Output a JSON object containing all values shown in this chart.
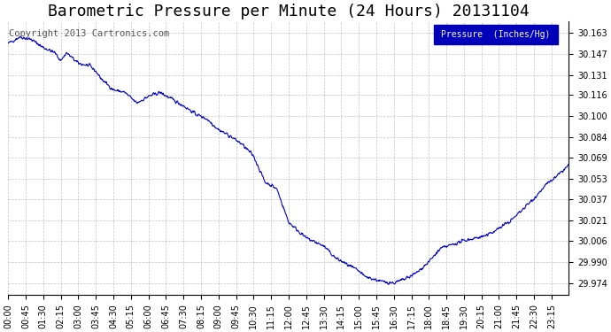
{
  "title": "Barometric Pressure per Minute (24 Hours) 20131104",
  "copyright_text": "Copyright 2013 Cartronics.com",
  "legend_label": "Pressure  (Inches/Hg)",
  "background_color": "#ffffff",
  "plot_bg_color": "#ffffff",
  "line_color": "#0000cc",
  "legend_bg_color": "#0000bb",
  "legend_text_color": "#ffffff",
  "grid_color": "#aaaaaa",
  "title_color": "#000000",
  "yticks": [
    29.974,
    29.99,
    30.006,
    30.021,
    30.037,
    30.053,
    30.069,
    30.084,
    30.1,
    30.116,
    30.131,
    30.147,
    30.163
  ],
  "ylim": [
    29.965,
    30.172
  ],
  "xtick_labels": [
    "00:00",
    "00:45",
    "01:30",
    "02:15",
    "03:00",
    "03:45",
    "04:30",
    "05:15",
    "06:00",
    "06:45",
    "07:30",
    "08:15",
    "09:00",
    "09:45",
    "10:30",
    "11:15",
    "12:00",
    "12:45",
    "13:30",
    "14:15",
    "15:00",
    "15:45",
    "16:30",
    "17:15",
    "18:00",
    "18:45",
    "19:30",
    "20:15",
    "21:00",
    "21:45",
    "22:30",
    "23:15"
  ],
  "num_minutes": 1440,
  "title_fontsize": 13,
  "axis_fontsize": 7,
  "copyright_fontsize": 7.5
}
